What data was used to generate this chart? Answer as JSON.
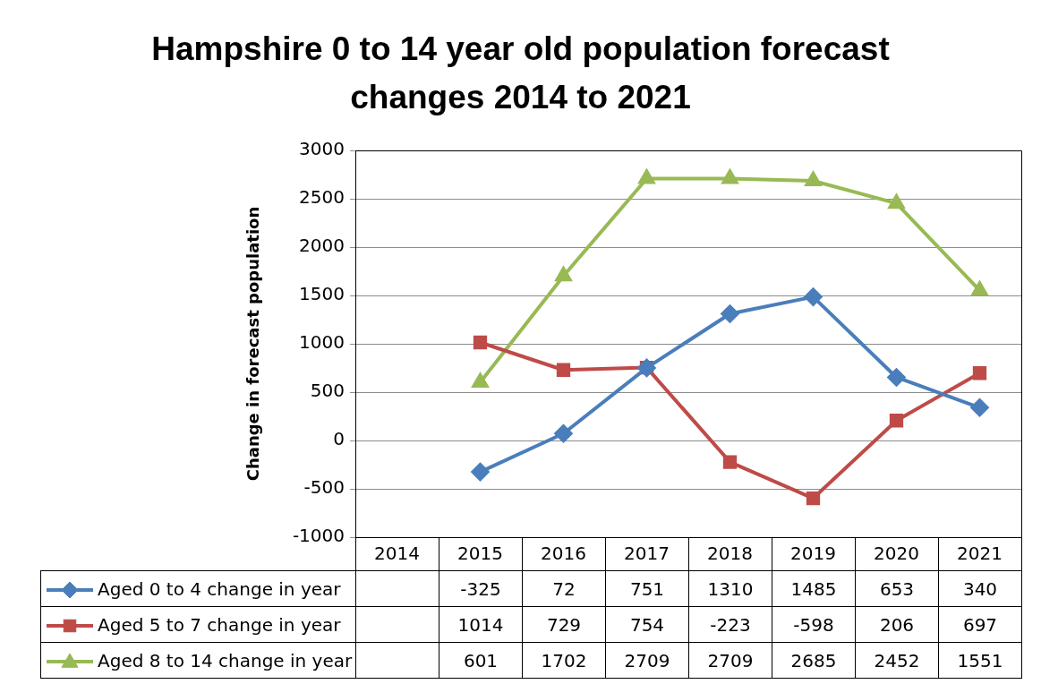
{
  "chart_data": {
    "type": "line",
    "title": "Hampshire 0 to 14 year old population forecast changes 2014 to 2021",
    "ylabel": "Change in forecast population",
    "categories": [
      "2014",
      "2015",
      "2016",
      "2017",
      "2018",
      "2019",
      "2020",
      "2021"
    ],
    "series": [
      {
        "name": "Aged 0 to 4 change in year",
        "color": "#4a7ebb",
        "marker": "diamond",
        "values": [
          null,
          -325,
          72,
          751,
          1310,
          1485,
          653,
          340
        ]
      },
      {
        "name": "Aged 5 to 7 change in year",
        "color": "#be4b48",
        "marker": "square",
        "values": [
          null,
          1014,
          729,
          754,
          -223,
          -598,
          206,
          697
        ]
      },
      {
        "name": "Aged 8 to 14 change in year",
        "color": "#98b954",
        "marker": "triangle",
        "values": [
          null,
          601,
          1702,
          2709,
          2709,
          2685,
          2452,
          1551
        ]
      }
    ],
    "ylim": [
      -1000,
      3000
    ],
    "yticks": [
      -1000,
      -500,
      0,
      500,
      1000,
      1500,
      2000,
      2500,
      3000
    ],
    "grid": "y",
    "legend": "bottom",
    "data_labels": true
  }
}
